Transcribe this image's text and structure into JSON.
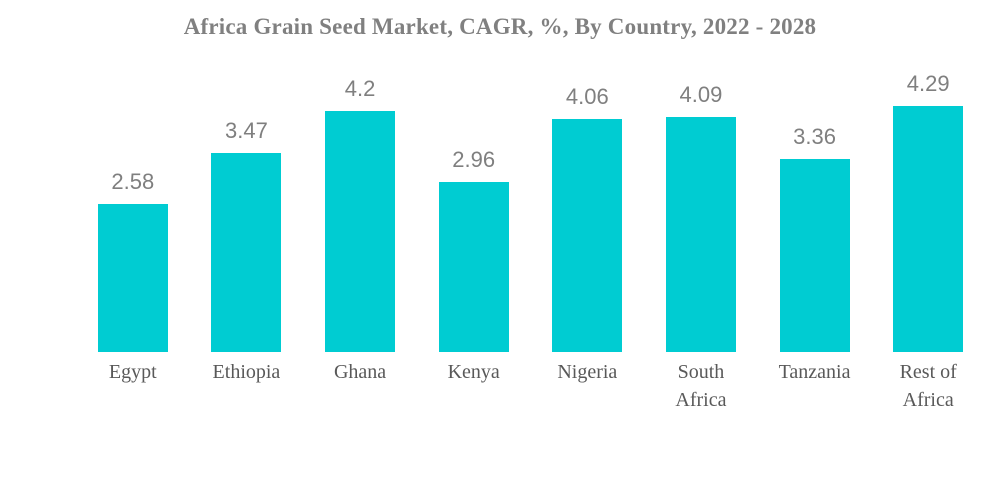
{
  "title": "Africa Grain Seed Market, CAGR, %, By Country, 2022 - 2028",
  "colors": {
    "bar": "#00CCD2",
    "title_text": "#808080",
    "value_text": "#7F7F7F",
    "category_text": "#595959",
    "background": "#FFFFFF"
  },
  "chart_data": {
    "type": "bar",
    "title": "Africa Grain Seed Market, CAGR, %, By Country, 2022 - 2028",
    "categories": [
      "Egypt",
      "Ethiopia",
      "Ghana",
      "Kenya",
      "Nigeria",
      "South Africa",
      "Tanzania",
      "Rest of Africa"
    ],
    "values": [
      2.58,
      3.47,
      4.2,
      2.96,
      4.06,
      4.09,
      3.36,
      4.29
    ],
    "value_labels": [
      "2.58",
      "3.47",
      "4.2",
      "2.96",
      "4.06",
      "4.09",
      "3.36",
      "4.29"
    ],
    "xlabel": "",
    "ylabel": "",
    "ylim": [
      0,
      4.5
    ],
    "grid": false,
    "legend": false,
    "axes_visible": false,
    "bar_color": "#00CCD2",
    "value_label_position": "above-bar"
  }
}
